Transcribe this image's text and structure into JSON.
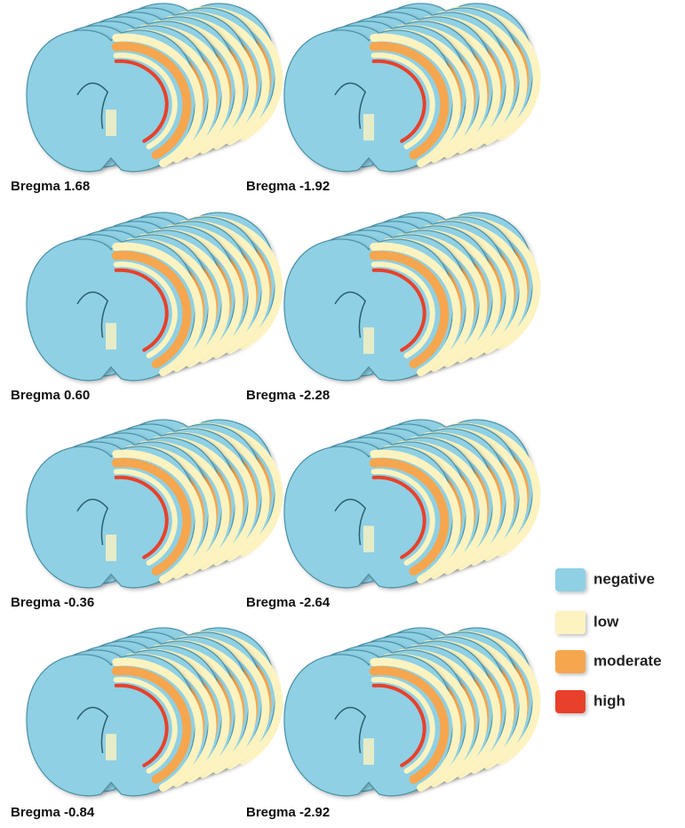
{
  "panels": [
    {
      "label": "Bregma 1.68"
    },
    {
      "label": "Bregma 0.60"
    },
    {
      "label": "Bregma -0.36"
    },
    {
      "label": "Bregma -0.84"
    },
    {
      "label": "Bregma -1.92"
    },
    {
      "label": "Bregma -2.28"
    },
    {
      "label": "Bregma -2.64"
    },
    {
      "label": "Bregma -2.92"
    }
  ],
  "legend": [
    {
      "label": "negative",
      "color": "#8fd0e4"
    },
    {
      "label": "low",
      "color": "#fcf3c0"
    },
    {
      "label": "moderate",
      "color": "#f6a64e"
    },
    {
      "label": "high",
      "color": "#e8412a"
    }
  ]
}
